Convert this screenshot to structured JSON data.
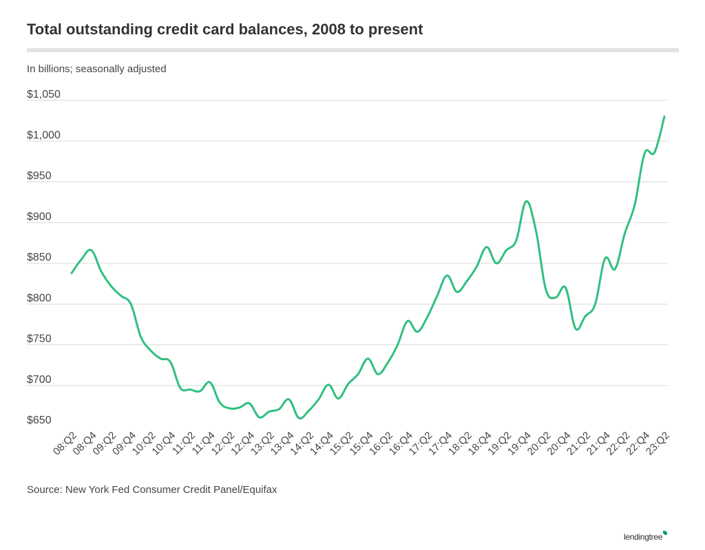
{
  "chart_data": {
    "type": "line",
    "title": "Total outstanding credit card balances, 2008 to present",
    "subtitle": "In billions; seasonally adjusted",
    "source": "Source: New York Fed Consumer Credit Panel/Equifax",
    "ylim": [
      650,
      1050
    ],
    "yticks": [
      650,
      700,
      750,
      800,
      850,
      900,
      950,
      1000,
      1050
    ],
    "ytick_labels": [
      "$650",
      "$700",
      "$750",
      "$800",
      "$850",
      "$900",
      "$950",
      "$1,000",
      "$1,050"
    ],
    "grid": true,
    "xtick_labels": [
      "08:Q2",
      "08:Q4",
      "09:Q2",
      "09:Q4",
      "10:Q2",
      "10:Q4",
      "11:Q2",
      "11:Q4",
      "12:Q2",
      "12:Q4",
      "13:Q2",
      "13:Q4",
      "14:Q2",
      "14:Q4",
      "15:Q2",
      "15:Q4",
      "16:Q2",
      "16:Q4",
      "17:Q2",
      "17:Q4",
      "18:Q2",
      "18:Q4",
      "19:Q2",
      "19:Q4",
      "20:Q2",
      "20:Q4",
      "21:Q2",
      "21:Q4",
      "22:Q2",
      "22:Q4",
      "23:Q2"
    ],
    "x": [
      "08:Q2",
      "08:Q3",
      "08:Q4",
      "09:Q1",
      "09:Q2",
      "09:Q3",
      "09:Q4",
      "10:Q1",
      "10:Q2",
      "10:Q3",
      "10:Q4",
      "11:Q1",
      "11:Q2",
      "11:Q3",
      "11:Q4",
      "12:Q1",
      "12:Q2",
      "12:Q3",
      "12:Q4",
      "13:Q1",
      "13:Q2",
      "13:Q3",
      "13:Q4",
      "14:Q1",
      "14:Q2",
      "14:Q3",
      "14:Q4",
      "15:Q1",
      "15:Q2",
      "15:Q3",
      "15:Q4",
      "16:Q1",
      "16:Q2",
      "16:Q3",
      "16:Q4",
      "17:Q1",
      "17:Q2",
      "17:Q3",
      "17:Q4",
      "18:Q1",
      "18:Q2",
      "18:Q3",
      "18:Q4",
      "19:Q1",
      "19:Q2",
      "19:Q3",
      "19:Q4",
      "20:Q1",
      "20:Q2",
      "20:Q3",
      "20:Q4",
      "21:Q1",
      "21:Q2",
      "21:Q3",
      "21:Q4",
      "22:Q1",
      "22:Q2",
      "22:Q3",
      "22:Q4",
      "23:Q1",
      "23:Q2"
    ],
    "series": [
      {
        "color": "#2fbf7f",
        "values": [
          838,
          855,
          866,
          840,
          822,
          810,
          800,
          760,
          743,
          733,
          729,
          697,
          695,
          693,
          704,
          679,
          672,
          673,
          678,
          661,
          668,
          671,
          683,
          660,
          669,
          683,
          701,
          684,
          702,
          714,
          733,
          714,
          728,
          750,
          779,
          766,
          784,
          810,
          835,
          815,
          828,
          846,
          870,
          850,
          866,
          878,
          926,
          890,
          818,
          808,
          820,
          770,
          785,
          800,
          856,
          843,
          887,
          922,
          985,
          986,
          1030
        ]
      }
    ]
  },
  "logo": {
    "text": "lendingtree"
  }
}
